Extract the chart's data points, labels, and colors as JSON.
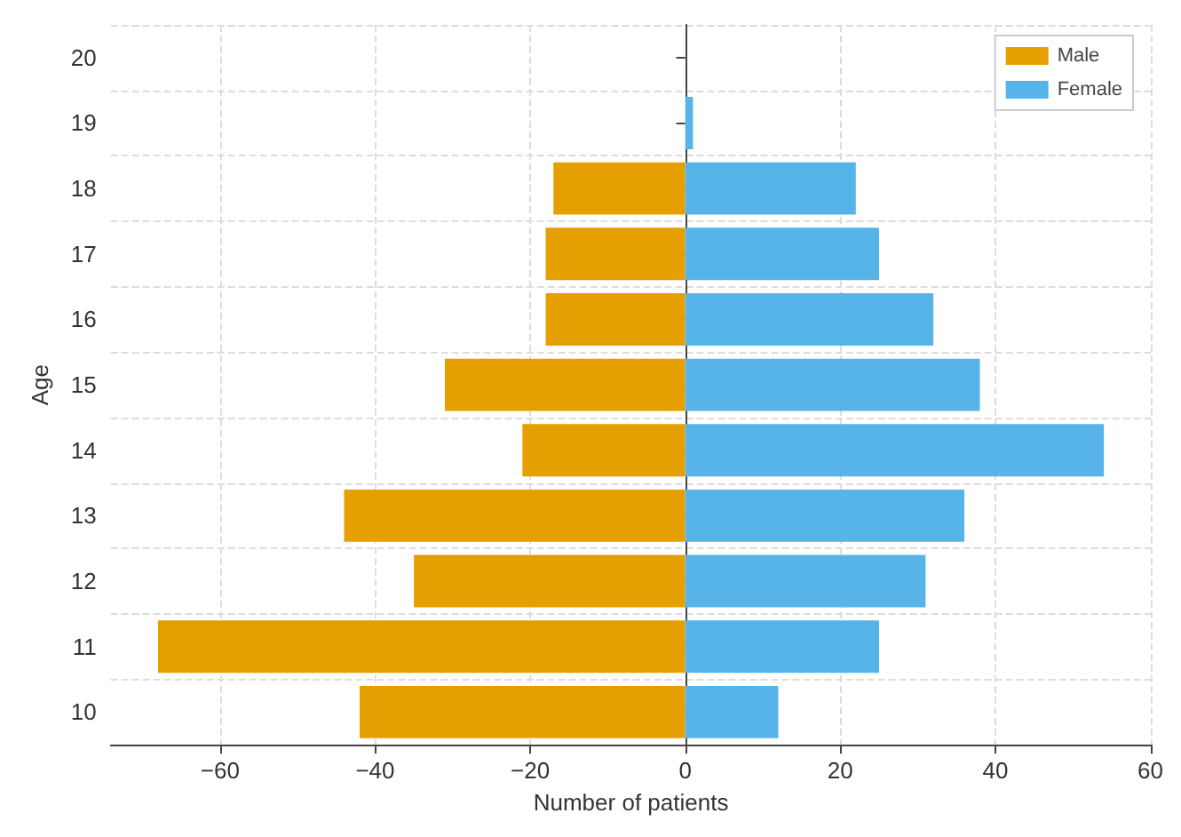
{
  "chart_data": {
    "type": "bar",
    "orientation": "horizontal",
    "stacked": true,
    "xlabel": "Number of patients",
    "ylabel": "Age",
    "categories": [
      "20",
      "19",
      "18",
      "17",
      "16",
      "15",
      "14",
      "13",
      "12",
      "11",
      "10"
    ],
    "series": [
      {
        "name": "Male",
        "color": "#e69f00",
        "values": [
          null,
          null,
          -17,
          -18,
          -18,
          -31,
          -21,
          -44,
          -35,
          -68,
          -42
        ]
      },
      {
        "name": "Female",
        "color": "#56b4e9",
        "values": [
          null,
          1,
          22,
          25,
          32,
          38,
          54,
          36,
          31,
          25,
          12
        ]
      }
    ],
    "xlim": [
      -74.1,
      60.1
    ],
    "xticks": [
      -60,
      -40,
      -20,
      0,
      20,
      40,
      60
    ],
    "grid": true,
    "legend": "top right"
  }
}
